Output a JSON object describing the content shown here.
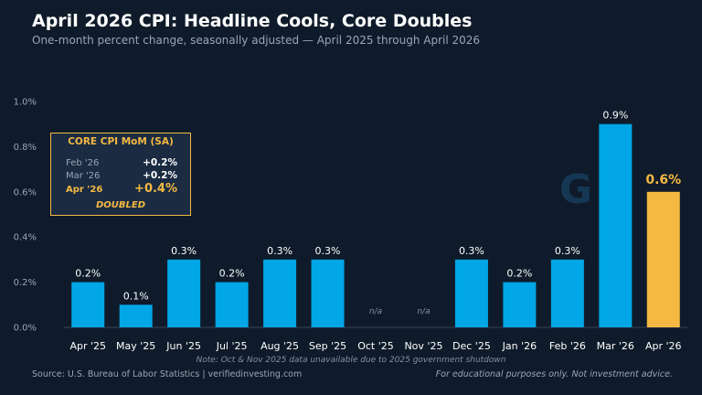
{
  "header": {
    "title": "April 2026 CPI: Headline Cools, Core Doubles",
    "subtitle": "One-month percent change, seasonally adjusted — April 2025 through April 2026"
  },
  "chart_data": {
    "type": "bar",
    "categories": [
      "Apr '25",
      "May '25",
      "Jun '25",
      "Jul '25",
      "Aug '25",
      "Sep '25",
      "Oct '25",
      "Nov '25",
      "Dec '25",
      "Jan '26",
      "Feb '26",
      "Mar '26",
      "Apr '26"
    ],
    "values": [
      0.2,
      0.1,
      0.3,
      0.2,
      0.3,
      0.3,
      null,
      null,
      0.3,
      0.2,
      0.3,
      0.9,
      0.6
    ],
    "labels": [
      "0.2%",
      "0.1%",
      "0.3%",
      "0.2%",
      "0.3%",
      "0.3%",
      "n/a",
      "n/a",
      "0.3%",
      "0.2%",
      "0.3%",
      "0.9%",
      "0.6%"
    ],
    "highlight_index": 12,
    "ylim": [
      0,
      1.0
    ],
    "yticks": [
      0,
      0.2,
      0.4,
      0.6,
      0.8,
      1.0
    ],
    "ytick_labels": [
      "0.0%",
      "0.2%",
      "0.4%",
      "0.6%",
      "0.8%",
      "1.0%"
    ],
    "grid": false,
    "xlabel": "",
    "ylabel": "",
    "colors": {
      "bar": "#00a6e6",
      "highlight": "#f5b942",
      "background": "#0f1b2a"
    }
  },
  "callout": {
    "title": "CORE CPI MoM (SA)",
    "rows": [
      {
        "label": "Feb '26",
        "value": "+0.2%"
      },
      {
        "label": "Mar '26",
        "value": "+0.2%"
      },
      {
        "label": "Apr '26",
        "value": "+0.4%"
      }
    ],
    "footer": "DOUBLED"
  },
  "watermark": "G",
  "footer": {
    "note": "Note: Oct & Nov 2025 data unavailable due to 2025 government shutdown",
    "source": "Source: U.S. Bureau of Labor Statistics  |  verifiedinvesting.com",
    "disclaimer": "For educational purposes only. Not investment advice."
  }
}
